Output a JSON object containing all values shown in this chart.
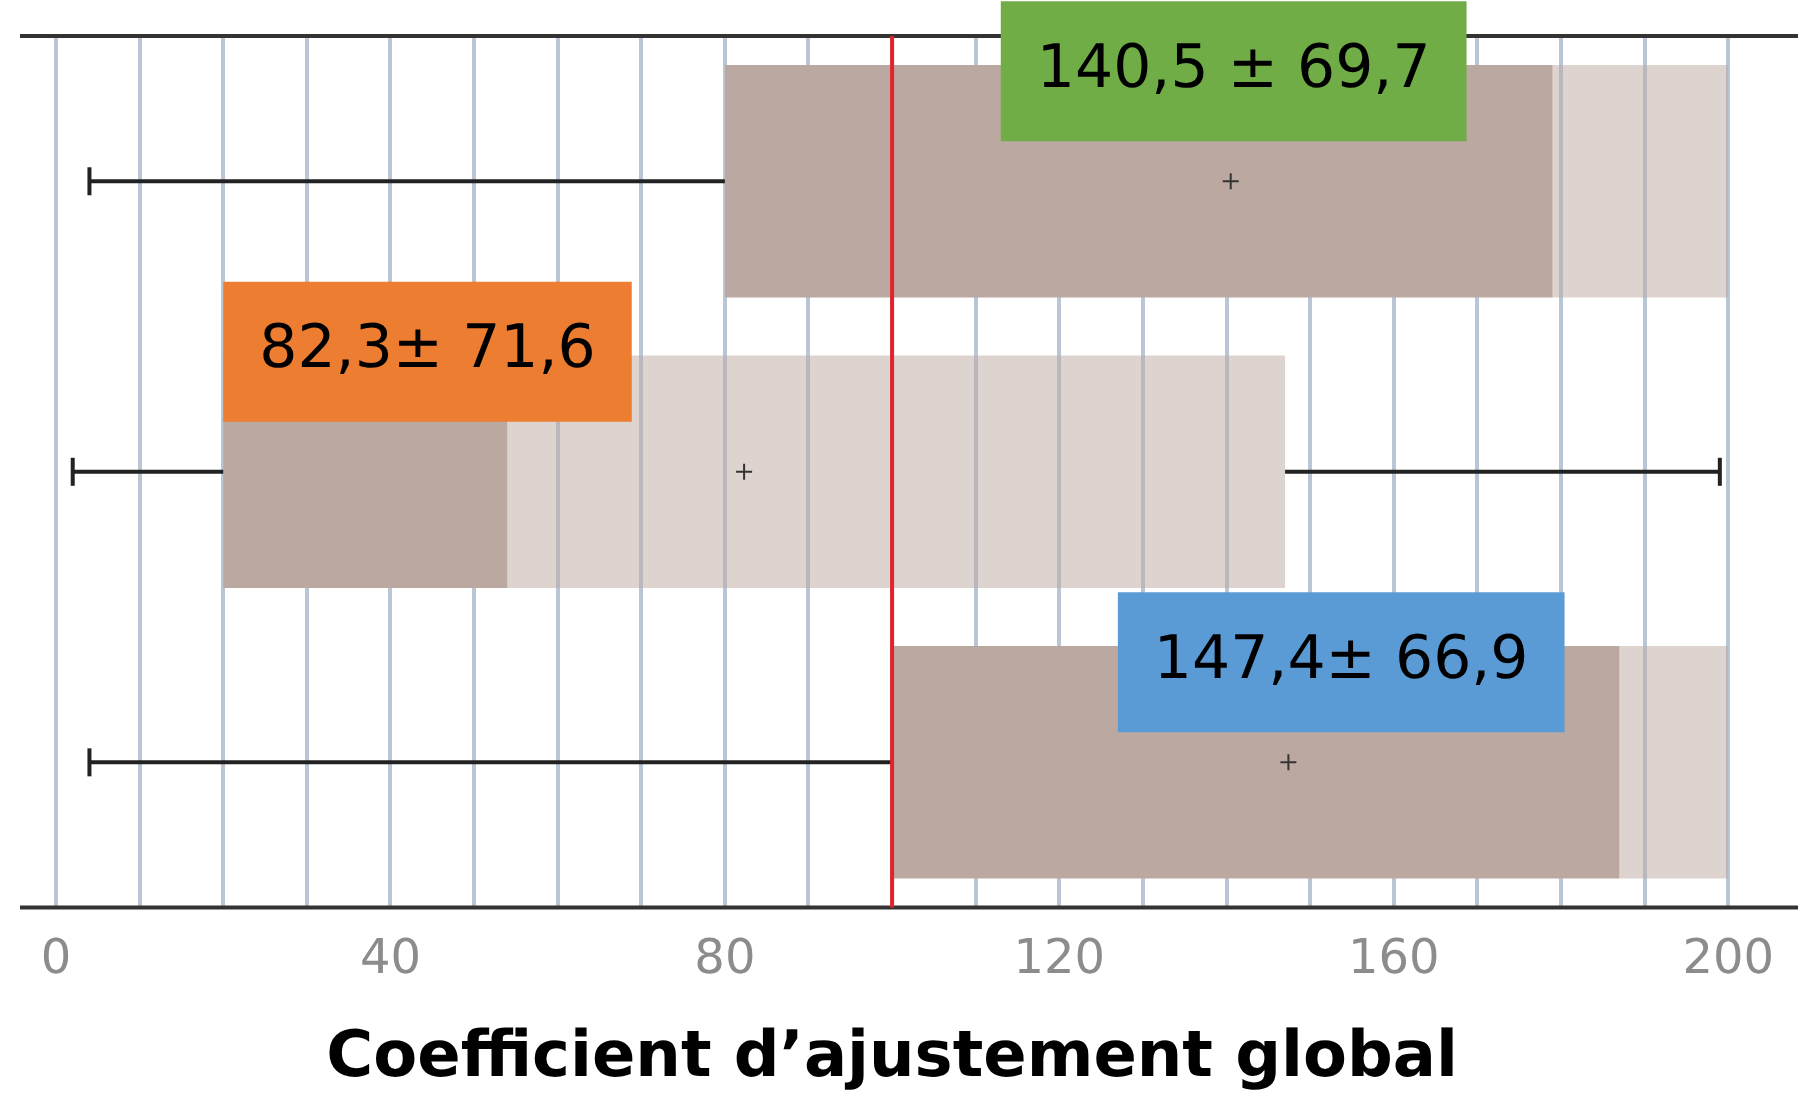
{
  "chart_data": {
    "type": "box",
    "orientation": "horizontal",
    "xlabel": "Coefficient d’ajustement global",
    "categories": [
      null,
      null,
      null
    ],
    "series": [
      {
        "color": "#bba9a1",
        "boxes": [
          {
            "low": 4,
            "q1": 80,
            "median": 179,
            "q3": 200,
            "high": 200,
            "mean": 140.5
          },
          {
            "low": 2,
            "q1": 20,
            "median": 54,
            "q3": 147,
            "high": 199,
            "mean": 82.3
          },
          {
            "low": 4,
            "q1": 100,
            "median": 187,
            "q3": 200,
            "high": 200,
            "mean": 147.4
          }
        ]
      }
    ],
    "xlim": [
      0,
      200
    ],
    "xticks": [
      0,
      {
        "value": 10,
        "label": null
      },
      {
        "value": 20,
        "label": null
      },
      {
        "value": 30,
        "label": null
      },
      40,
      {
        "value": 50,
        "label": null
      },
      {
        "value": 60,
        "label": null
      },
      {
        "value": 70,
        "label": null
      },
      80,
      {
        "value": 90,
        "label": null
      },
      {
        "value": 100,
        "label": null
      },
      {
        "value": 110,
        "label": null
      },
      120,
      {
        "value": 130,
        "label": null
      },
      {
        "value": 140,
        "label": null
      },
      {
        "value": 150,
        "label": null
      },
      160,
      {
        "value": 170,
        "label": null
      },
      {
        "value": 180,
        "label": null
      },
      {
        "value": 190,
        "label": null
      },
      200
    ],
    "grid": "x",
    "marker": "cross",
    "ref_lines": [
      {
        "axis": "x",
        "value": 100,
        "color": "#e3222b"
      }
    ],
    "annotations": [
      "140,5 ± 69,7",
      "82,3± 71,6",
      "147,4± 66,9"
    ]
  }
}
